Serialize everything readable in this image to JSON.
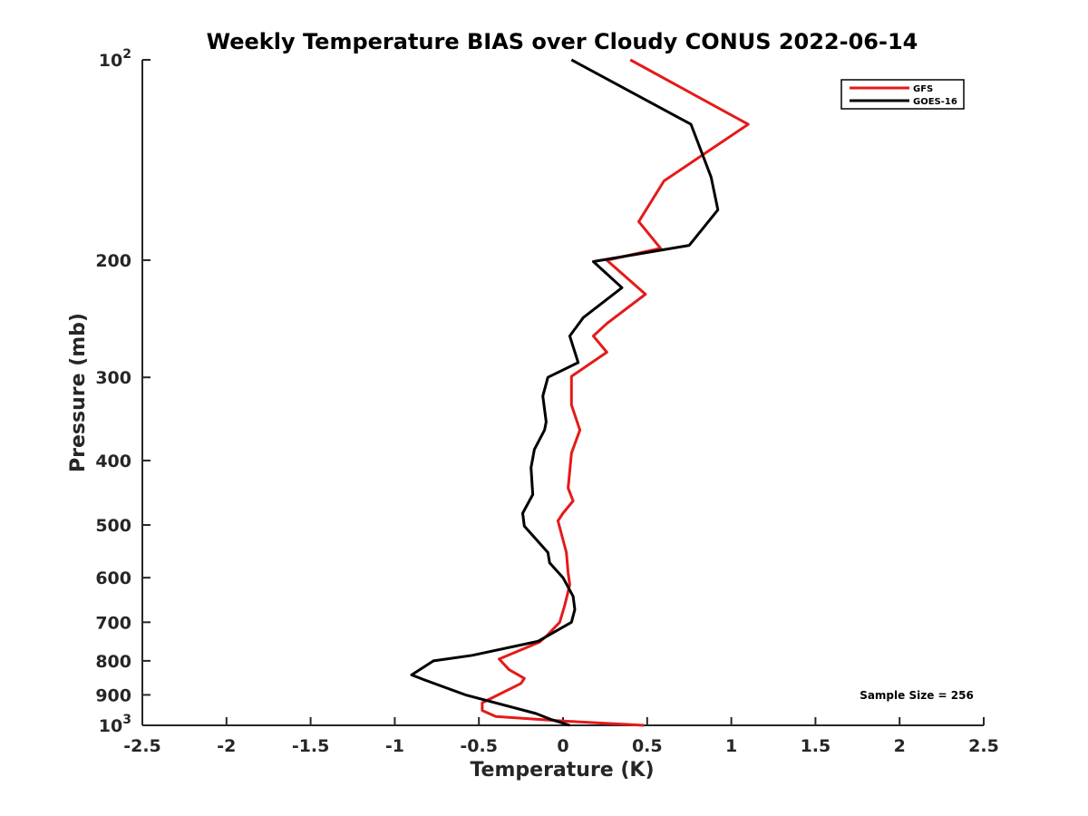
{
  "chart_data": {
    "type": "line",
    "title": "Weekly Temperature BIAS over Cloudy CONUS 2022-06-14",
    "xlabel": "Temperature (K)",
    "ylabel": "Pressure (mb)",
    "xlim": [
      -2.5,
      2.5
    ],
    "ylim": [
      1000,
      100
    ],
    "y_scale": "log",
    "y_direction": "reversed",
    "x_ticks": [
      "-2.5",
      "-2",
      "-1.5",
      "-1",
      "-0.5",
      "0",
      "0.5",
      "1",
      "1.5",
      "2",
      "2.5"
    ],
    "y_ticks": [
      {
        "value": 100,
        "base": "10",
        "exp": "2"
      },
      {
        "value": 200,
        "label": "200"
      },
      {
        "value": 300,
        "label": "300"
      },
      {
        "value": 400,
        "label": "400"
      },
      {
        "value": 500,
        "label": "500"
      },
      {
        "value": 600,
        "label": "600"
      },
      {
        "value": 700,
        "label": "700"
      },
      {
        "value": 800,
        "label": "800"
      },
      {
        "value": 900,
        "label": "900"
      },
      {
        "value": 1000,
        "base": "10",
        "exp": "3"
      }
    ],
    "legend_position": "top-right",
    "annotation": "Sample Size = 256",
    "series": [
      {
        "name": "GFS",
        "color": "#e41a1a",
        "points": [
          [
            0.4,
            100
          ],
          [
            1.1,
            125
          ],
          [
            0.6,
            152
          ],
          [
            0.45,
            175
          ],
          [
            0.58,
            192
          ],
          [
            0.26,
            200
          ],
          [
            0.49,
            225
          ],
          [
            0.26,
            249
          ],
          [
            0.18,
            260
          ],
          [
            0.26,
            275
          ],
          [
            0.05,
            299
          ],
          [
            0.05,
            330
          ],
          [
            0.1,
            360
          ],
          [
            0.05,
            390
          ],
          [
            0.03,
            440
          ],
          [
            0.06,
            460
          ],
          [
            0.0,
            480
          ],
          [
            -0.03,
            493
          ],
          [
            0.02,
            550
          ],
          [
            0.03,
            590
          ],
          [
            0.04,
            615
          ],
          [
            0.01,
            660
          ],
          [
            -0.02,
            700
          ],
          [
            -0.1,
            735
          ],
          [
            -0.14,
            750
          ],
          [
            -0.38,
            795
          ],
          [
            -0.32,
            825
          ],
          [
            -0.23,
            850
          ],
          [
            -0.25,
            865
          ],
          [
            -0.48,
            925
          ],
          [
            -0.48,
            950
          ],
          [
            -0.4,
            970
          ],
          [
            0.0,
            985
          ],
          [
            0.48,
            1000
          ]
        ]
      },
      {
        "name": "GOES-16",
        "color": "#000000",
        "points": [
          [
            0.05,
            100
          ],
          [
            0.76,
            125
          ],
          [
            0.88,
            150
          ],
          [
            0.92,
            168
          ],
          [
            0.75,
            190
          ],
          [
            0.18,
            201
          ],
          [
            0.35,
            220
          ],
          [
            0.12,
            244
          ],
          [
            0.04,
            260
          ],
          [
            0.09,
            285
          ],
          [
            -0.09,
            300
          ],
          [
            -0.12,
            320
          ],
          [
            -0.1,
            350
          ],
          [
            -0.11,
            360
          ],
          [
            -0.17,
            385
          ],
          [
            -0.19,
            410
          ],
          [
            -0.18,
            450
          ],
          [
            -0.24,
            480
          ],
          [
            -0.23,
            502
          ],
          [
            -0.09,
            550
          ],
          [
            -0.08,
            570
          ],
          [
            0.0,
            600
          ],
          [
            0.06,
            640
          ],
          [
            0.07,
            670
          ],
          [
            0.05,
            700
          ],
          [
            -0.15,
            748
          ],
          [
            -0.54,
            785
          ],
          [
            -0.77,
            800
          ],
          [
            -0.9,
            840
          ],
          [
            -0.82,
            855
          ],
          [
            -0.58,
            900
          ],
          [
            -0.16,
            960
          ],
          [
            -0.07,
            980
          ],
          [
            0.04,
            1000
          ]
        ]
      }
    ]
  }
}
